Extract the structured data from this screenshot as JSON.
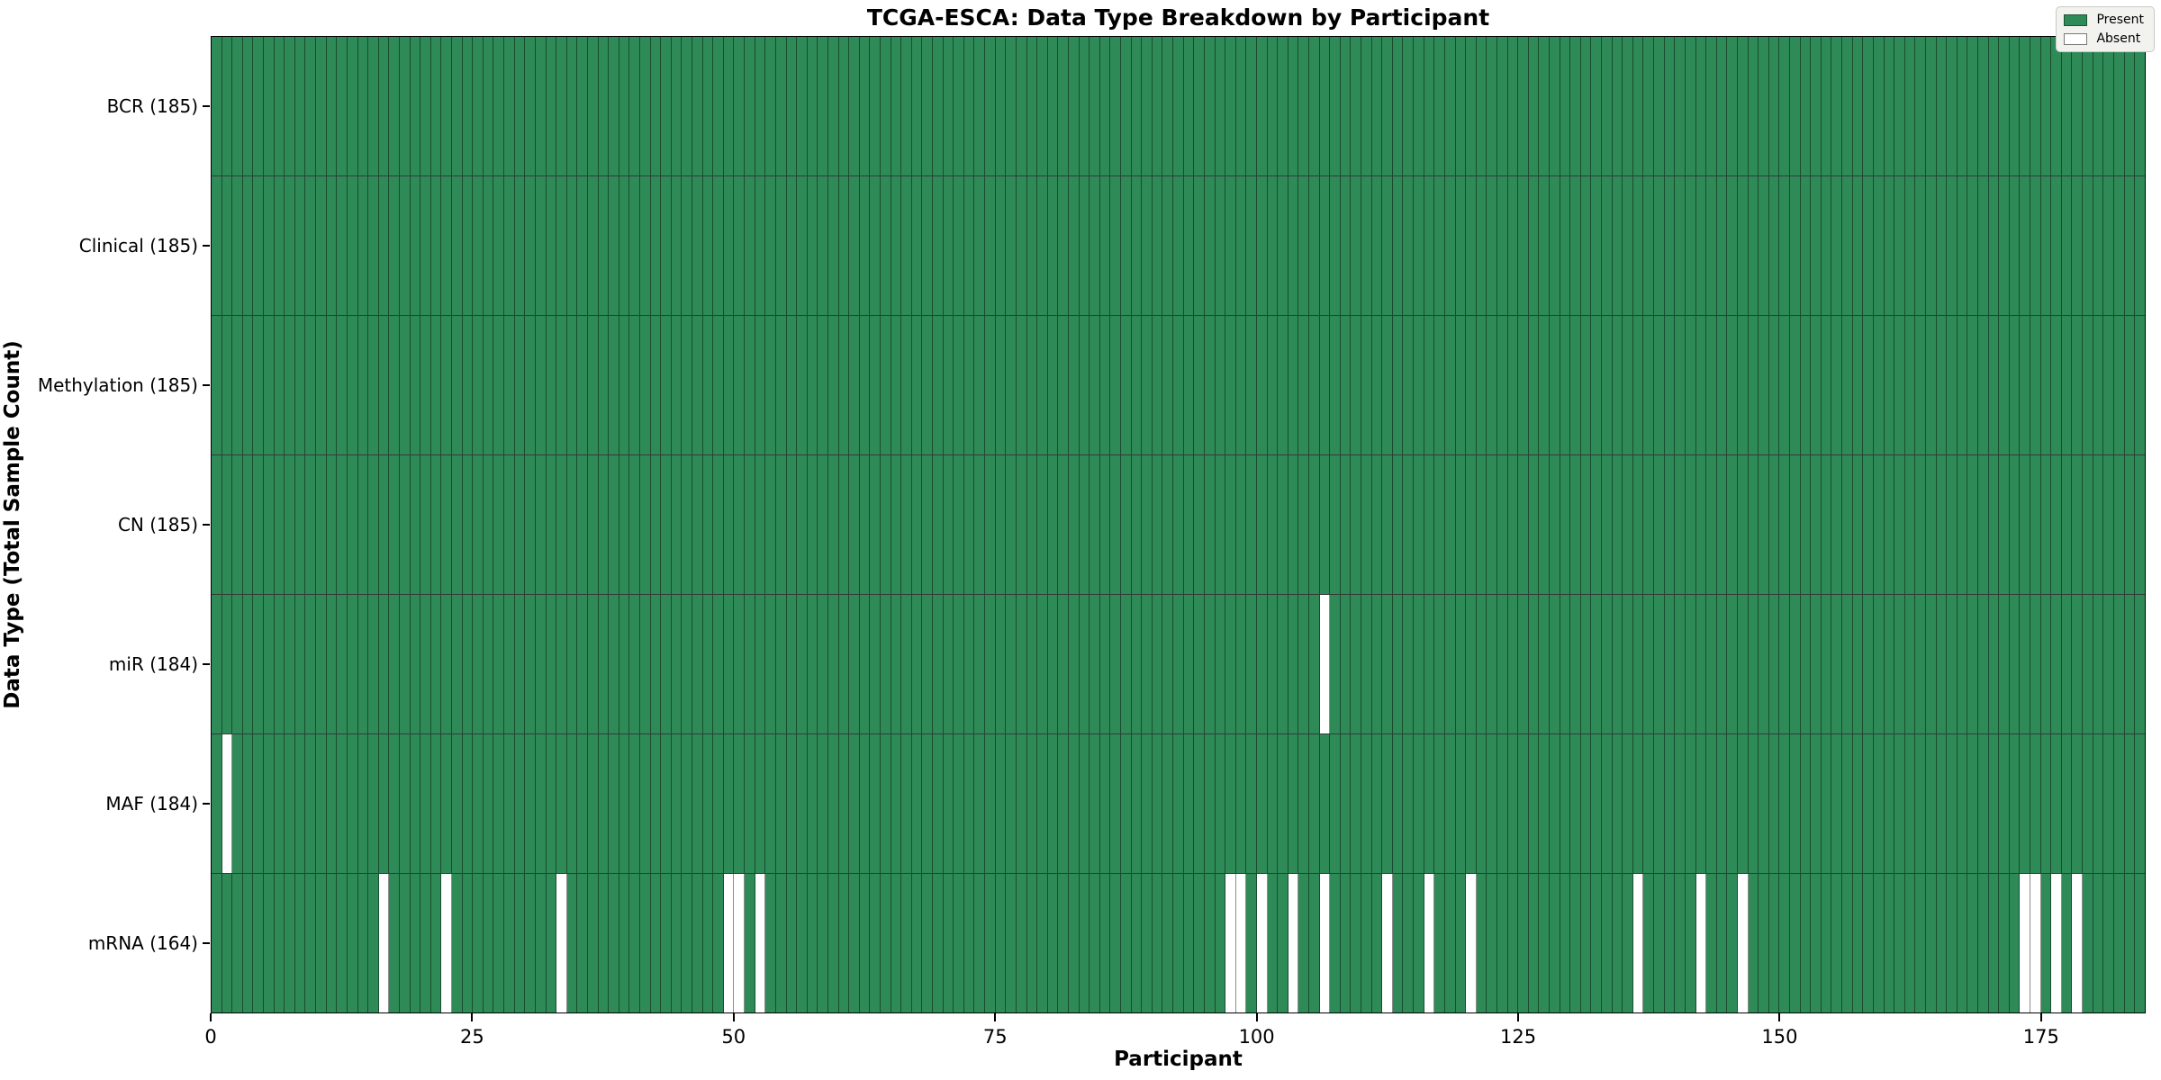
{
  "title": "TCGA-ESCA: Data Type Breakdown by Participant",
  "axes": {
    "xlabel": "Participant",
    "ylabel": "Data Type (Total Sample Count)",
    "x_ticks": [
      0,
      25,
      50,
      75,
      100,
      125,
      150,
      175
    ]
  },
  "legend": {
    "present_label": "Present",
    "absent_label": "Absent"
  },
  "colors": {
    "present": "#2E8B57",
    "absent": "#FFFFFF",
    "legend_bg": "#f2f2ef"
  },
  "chart_data": {
    "type": "heatmap",
    "title": "TCGA-ESCA: Data Type Breakdown by Participant",
    "xlabel": "Participant",
    "ylabel": "Data Type (Total Sample Count)",
    "x_range": [
      0,
      185
    ],
    "n_participants": 185,
    "legend_entries": [
      "Present",
      "Absent"
    ],
    "legend_position": "upper right",
    "value_encoding": {
      "present": 1,
      "absent": 0
    },
    "rows": [
      {
        "label": "BCR (185)",
        "data_type": "BCR",
        "present_count": 185,
        "absent_participants": []
      },
      {
        "label": "Clinical (185)",
        "data_type": "Clinical",
        "present_count": 185,
        "absent_participants": []
      },
      {
        "label": "Methylation (185)",
        "data_type": "Methylation",
        "present_count": 185,
        "absent_participants": []
      },
      {
        "label": "CN (185)",
        "data_type": "CN",
        "present_count": 185,
        "absent_participants": []
      },
      {
        "label": "miR (184)",
        "data_type": "miR",
        "present_count": 184,
        "absent_participants": [
          106
        ]
      },
      {
        "label": "MAF (184)",
        "data_type": "MAF",
        "present_count": 184,
        "absent_participants": [
          1
        ]
      },
      {
        "label": "mRNA (164)",
        "data_type": "mRNA",
        "present_count": 164,
        "absent_participants": [
          16,
          22,
          33,
          49,
          50,
          52,
          97,
          98,
          100,
          103,
          106,
          112,
          116,
          120,
          136,
          142,
          146,
          173,
          174,
          176,
          178
        ]
      }
    ]
  }
}
